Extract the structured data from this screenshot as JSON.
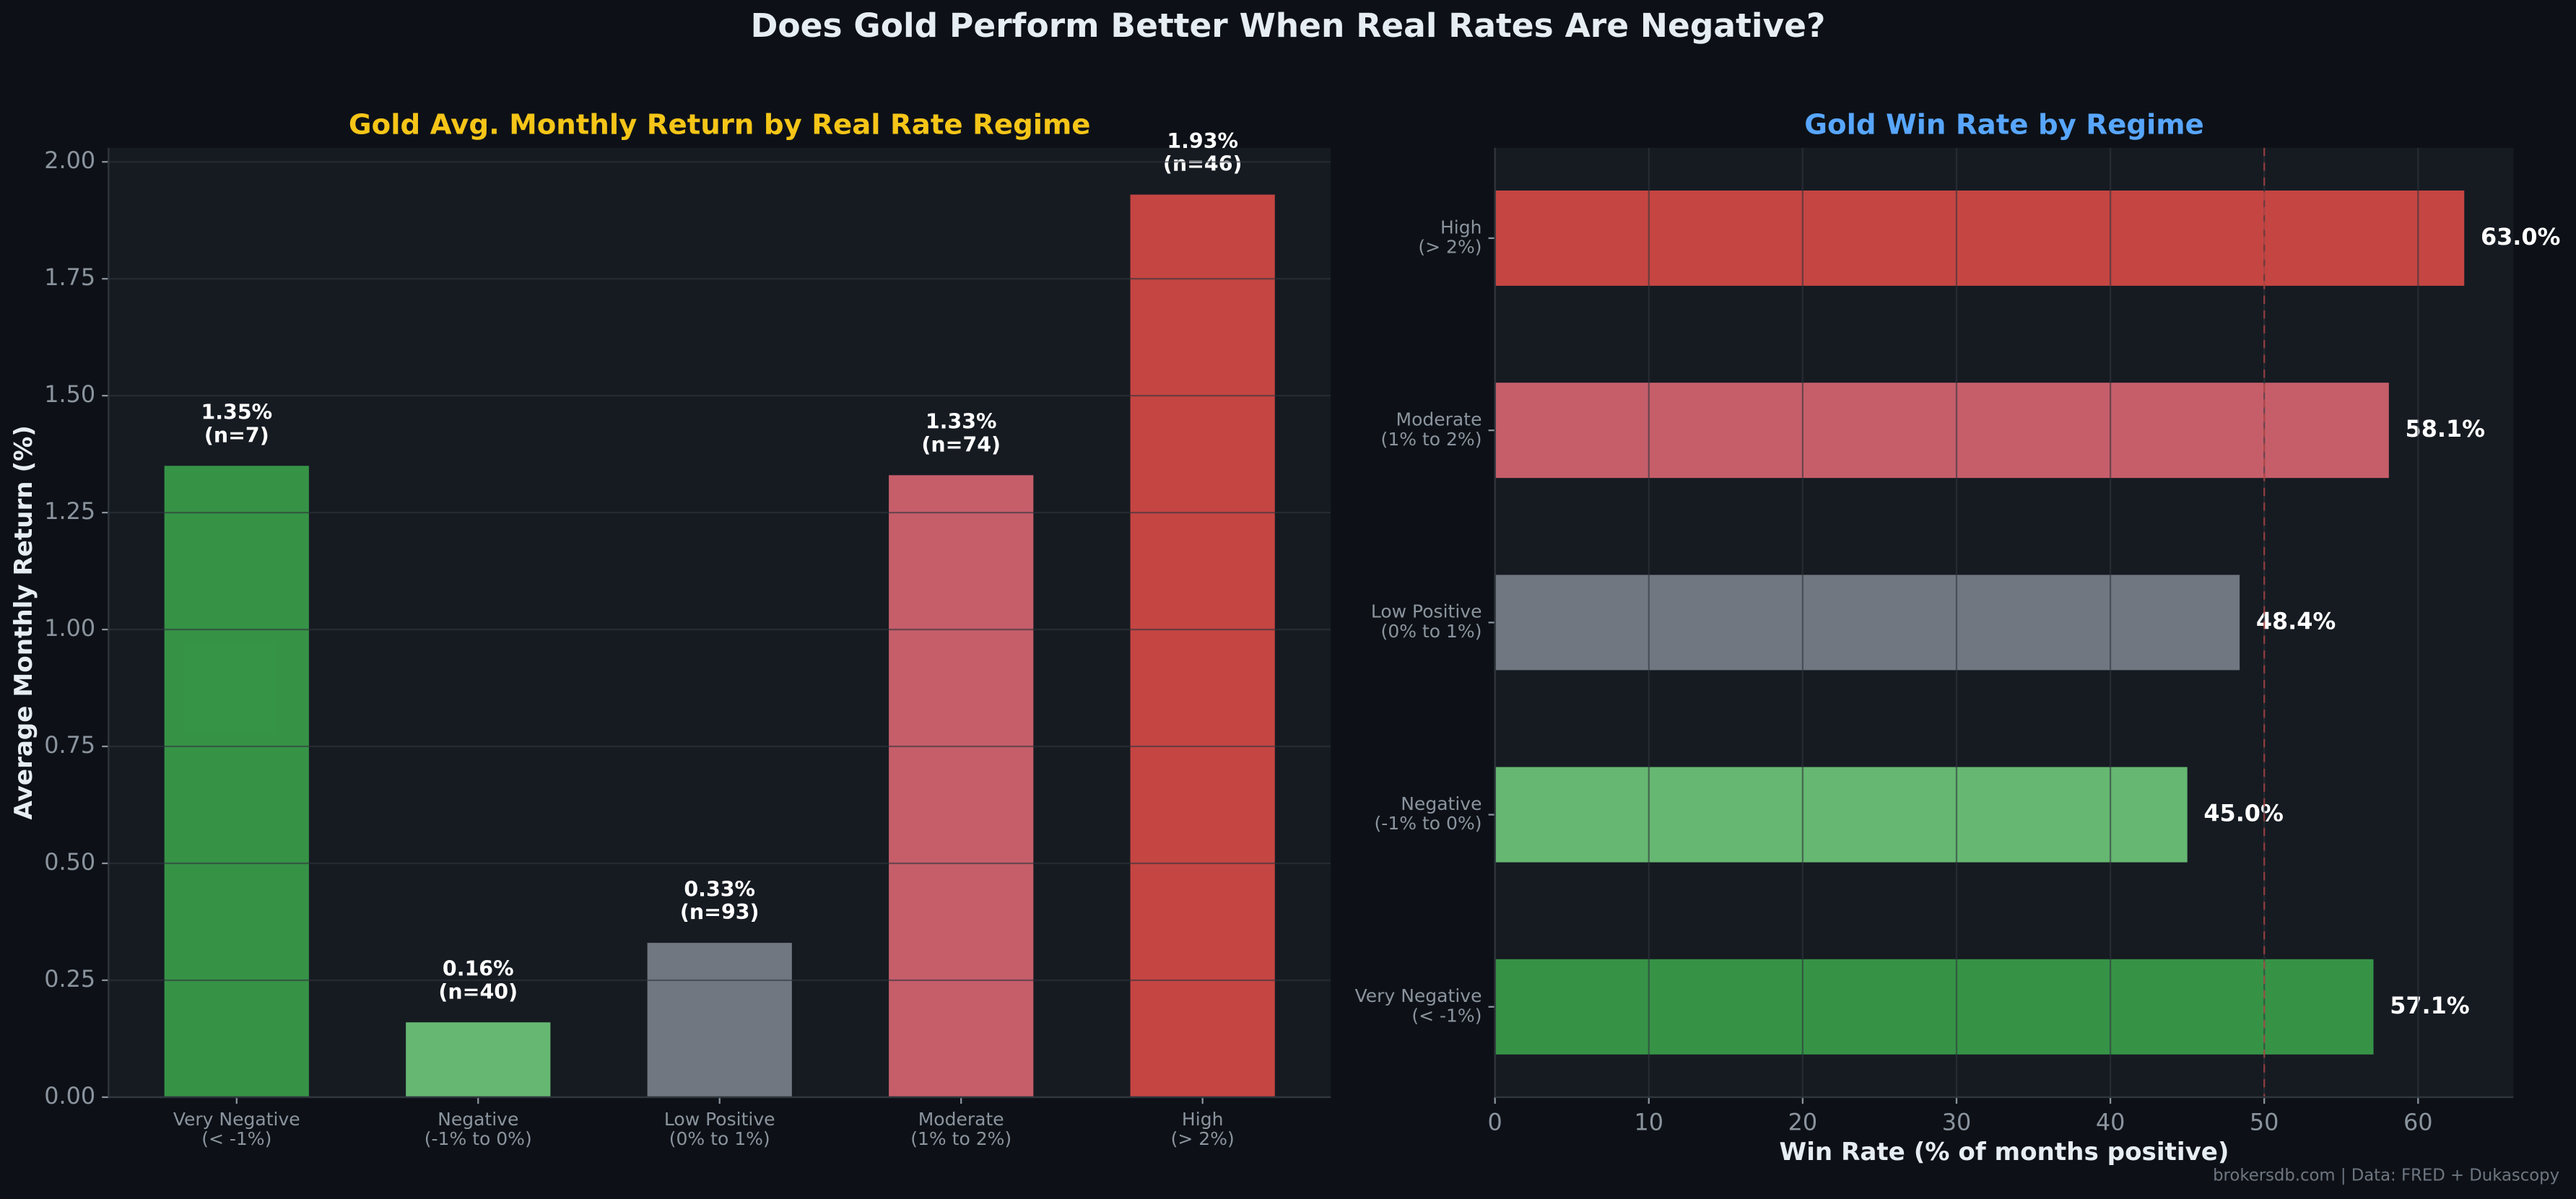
{
  "title": "Does Gold Perform Better When Real Rates Are Negative?",
  "footnote": "brokersdb.com  |  Data: FRED + Dukascopy",
  "chart_data": [
    {
      "type": "bar",
      "title": "Gold Avg. Monthly Return by Real Rate Regime",
      "title_color": "#f5c518",
      "ylabel": "Average Monthly Return (%)",
      "categories": [
        [
          "Very Negative",
          "(< -1%)"
        ],
        [
          "Negative",
          "(-1% to 0%)"
        ],
        [
          "Low Positive",
          "(0% to 1%)"
        ],
        [
          "Moderate",
          "(1% to 2%)"
        ],
        [
          "High",
          "(> 2%)"
        ]
      ],
      "values": [
        1.35,
        0.16,
        0.33,
        1.33,
        1.93
      ],
      "value_labels": [
        [
          "1.35%",
          "(n=7)"
        ],
        [
          "0.16%",
          "(n=40)"
        ],
        [
          "0.33%",
          "(n=93)"
        ],
        [
          "1.33%",
          "(n=74)"
        ],
        [
          "1.93%",
          "(n=46)"
        ]
      ],
      "colors": [
        "#3aa14a",
        "#6fc97a",
        "#7b828c",
        "#d96672",
        "#d84a46"
      ],
      "ylim": [
        0,
        2.03
      ],
      "yticks": [
        {
          "value": 0,
          "label": "0.00"
        },
        {
          "value": 0.25,
          "label": "0.25"
        },
        {
          "value": 0.5,
          "label": "0.50"
        },
        {
          "value": 0.75,
          "label": "0.75"
        },
        {
          "value": 1,
          "label": "1.00"
        },
        {
          "value": 1.25,
          "label": "1.25"
        },
        {
          "value": 1.5,
          "label": "1.50"
        },
        {
          "value": 1.75,
          "label": "1.75"
        },
        {
          "value": 2,
          "label": "2.00"
        }
      ],
      "grid": true
    },
    {
      "type": "hbar",
      "title": "Gold Win Rate by Regime",
      "title_color": "#58a6ff",
      "xlabel": "Win Rate (% of months positive)",
      "categories": [
        [
          "Very Negative",
          "(< -1%)"
        ],
        [
          "Negative",
          "(-1% to 0%)"
        ],
        [
          "Low Positive",
          "(0% to 1%)"
        ],
        [
          "Moderate",
          "(1% to 2%)"
        ],
        [
          "High",
          "(> 2%)"
        ]
      ],
      "values": [
        57.1,
        45.0,
        48.4,
        58.1,
        63.0
      ],
      "value_labels": [
        "57.1%",
        "45.0%",
        "48.4%",
        "58.1%",
        "63.0%"
      ],
      "colors": [
        "#3aa14a",
        "#6fc97a",
        "#7b828c",
        "#d96672",
        "#d84a46"
      ],
      "xlim": [
        0,
        66.2
      ],
      "xticks": [
        0,
        10,
        20,
        30,
        40,
        50,
        60
      ],
      "reference_line": 50,
      "grid": true
    }
  ]
}
